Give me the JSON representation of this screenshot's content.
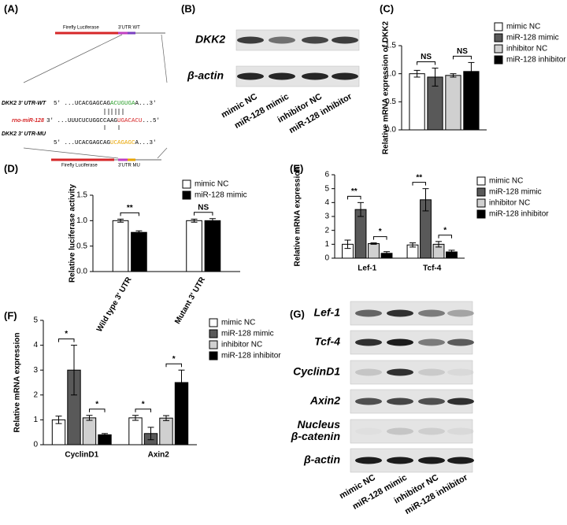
{
  "panel_a": {
    "label": "(A)",
    "top_construct": {
      "luciferase": "Firefly Luciferase",
      "utr": "3'UTR WT"
    },
    "rows": [
      {
        "name": "DKK2 3' UTR-WT",
        "sequence": [
          "5' ...UCACGAGCAG",
          "ACUGUGA",
          "A...3'"
        ]
      },
      {
        "name": "rno-miR-128",
        "sequence": [
          "3' ...UUUCUCUGGCCAAG",
          "UGACACU",
          "...5'"
        ]
      },
      {
        "name": "DKK2 3' UTR-MU",
        "sequence": [
          "5' ...UCACGAGCAG",
          "UCAGAGC",
          "A...3'"
        ]
      }
    ],
    "bottom_construct": {
      "luciferase": "Firefly Luciferase",
      "utr": "3'UTR MU"
    }
  },
  "panel_b": {
    "label": "(B)",
    "rows": [
      "DKK2",
      "β-actin"
    ],
    "lanes": [
      "mimic NC",
      "miR-128 mimic",
      "inhibitor NC",
      "miR-128 inhibitor"
    ]
  },
  "panel_g": {
    "label": "(G)",
    "rows": [
      [
        "Lef-1"
      ],
      [
        "Tcf-4"
      ],
      [
        "CyclinD1"
      ],
      [
        "Axin2"
      ],
      [
        "Nucleus",
        "β-catenin"
      ],
      [
        "β-actin"
      ]
    ],
    "lanes": [
      "mimic NC",
      "miR-128 mimic",
      "inhibitor NC",
      "miR-128 inhibitor"
    ]
  },
  "chart_data": [
    {
      "panel": "(C)",
      "type": "bar",
      "ylabel": "Relative mRNA expression of DKK2",
      "categories": [
        null
      ],
      "series": [
        {
          "name": "mimic NC",
          "color": "#ffffff",
          "values": [
            1.0
          ],
          "errors": [
            0.06
          ]
        },
        {
          "name": "miR-128 mimic",
          "color": "#595959",
          "values": [
            0.94
          ],
          "errors": [
            0.16
          ]
        },
        {
          "name": "inhibitor NC",
          "color": "#d0d0d0",
          "values": [
            0.97
          ],
          "errors": [
            0.03
          ]
        },
        {
          "name": "miR-128 inhibitor",
          "color": "#000000",
          "values": [
            1.04
          ],
          "errors": [
            0.16
          ]
        }
      ],
      "ylim": [
        0,
        1.5
      ],
      "yticks": [
        {
          "value": 0,
          "label": "0.0"
        },
        0.5,
        {
          "value": 1,
          "label": "1.0"
        },
        1.5
      ],
      "annotations": [
        "NS",
        "NS"
      ]
    },
    {
      "panel": "(D)",
      "type": "bar",
      "ylabel": "Relative luciferase activity",
      "categories": [
        "Wild type 3' UTR",
        "Mutant 3' UTR"
      ],
      "series": [
        {
          "name": "mimic NC",
          "color": "#ffffff",
          "values": [
            1.0,
            1.0
          ],
          "errors": [
            0.03,
            0.03
          ]
        },
        {
          "name": "miR-128 mimic",
          "color": "#000000",
          "values": [
            0.77,
            1.0
          ],
          "errors": [
            0.03,
            0.04
          ]
        }
      ],
      "ylim": [
        0,
        1.5
      ],
      "yticks": [
        {
          "value": 0,
          "label": "0.0"
        },
        0.5,
        {
          "value": 1,
          "label": "1.0"
        },
        1.5
      ],
      "annotations": [
        "**",
        "NS"
      ]
    },
    {
      "panel": "(E)",
      "type": "bar",
      "ylabel": "Relative mRNA expression",
      "categories": [
        "Lef-1",
        "Tcf-4"
      ],
      "series": [
        {
          "name": "mimic NC",
          "color": "#ffffff",
          "values": [
            1.0,
            0.95
          ],
          "errors": [
            0.3,
            0.15
          ]
        },
        {
          "name": "miR-128 mimic",
          "color": "#595959",
          "values": [
            3.5,
            4.2
          ],
          "errors": [
            0.5,
            0.8
          ]
        },
        {
          "name": "inhibitor NC",
          "color": "#d0d0d0",
          "values": [
            1.05,
            1.0
          ],
          "errors": [
            0.05,
            0.2
          ]
        },
        {
          "name": "miR-128 inhibitor",
          "color": "#000000",
          "values": [
            0.35,
            0.45
          ],
          "errors": [
            0.12,
            0.12
          ]
        }
      ],
      "ylim": [
        0,
        6
      ],
      "yticks": [
        0,
        1,
        2,
        3,
        4,
        5,
        6
      ],
      "annotations": [
        "**",
        "*",
        "**",
        "*"
      ]
    },
    {
      "panel": "(F)",
      "type": "bar",
      "ylabel": "Relative mRNA expression",
      "categories": [
        "CyclinD1",
        "Axin2"
      ],
      "series": [
        {
          "name": "mimic NC",
          "color": "#ffffff",
          "values": [
            1.0,
            1.08
          ],
          "errors": [
            0.15,
            0.1
          ]
        },
        {
          "name": "miR-128 mimic",
          "color": "#595959",
          "values": [
            3.0,
            0.45
          ],
          "errors": [
            1.0,
            0.25
          ]
        },
        {
          "name": "inhibitor NC",
          "color": "#d0d0d0",
          "values": [
            1.08,
            1.07
          ],
          "errors": [
            0.1,
            0.1
          ]
        },
        {
          "name": "miR-128 inhibitor",
          "color": "#000000",
          "values": [
            0.4,
            2.5
          ],
          "errors": [
            0.05,
            0.5
          ]
        }
      ],
      "ylim": [
        0,
        5
      ],
      "yticks": [
        0,
        1,
        2,
        3,
        4,
        5
      ],
      "annotations": [
        "*",
        "*",
        "*",
        "*"
      ]
    }
  ]
}
